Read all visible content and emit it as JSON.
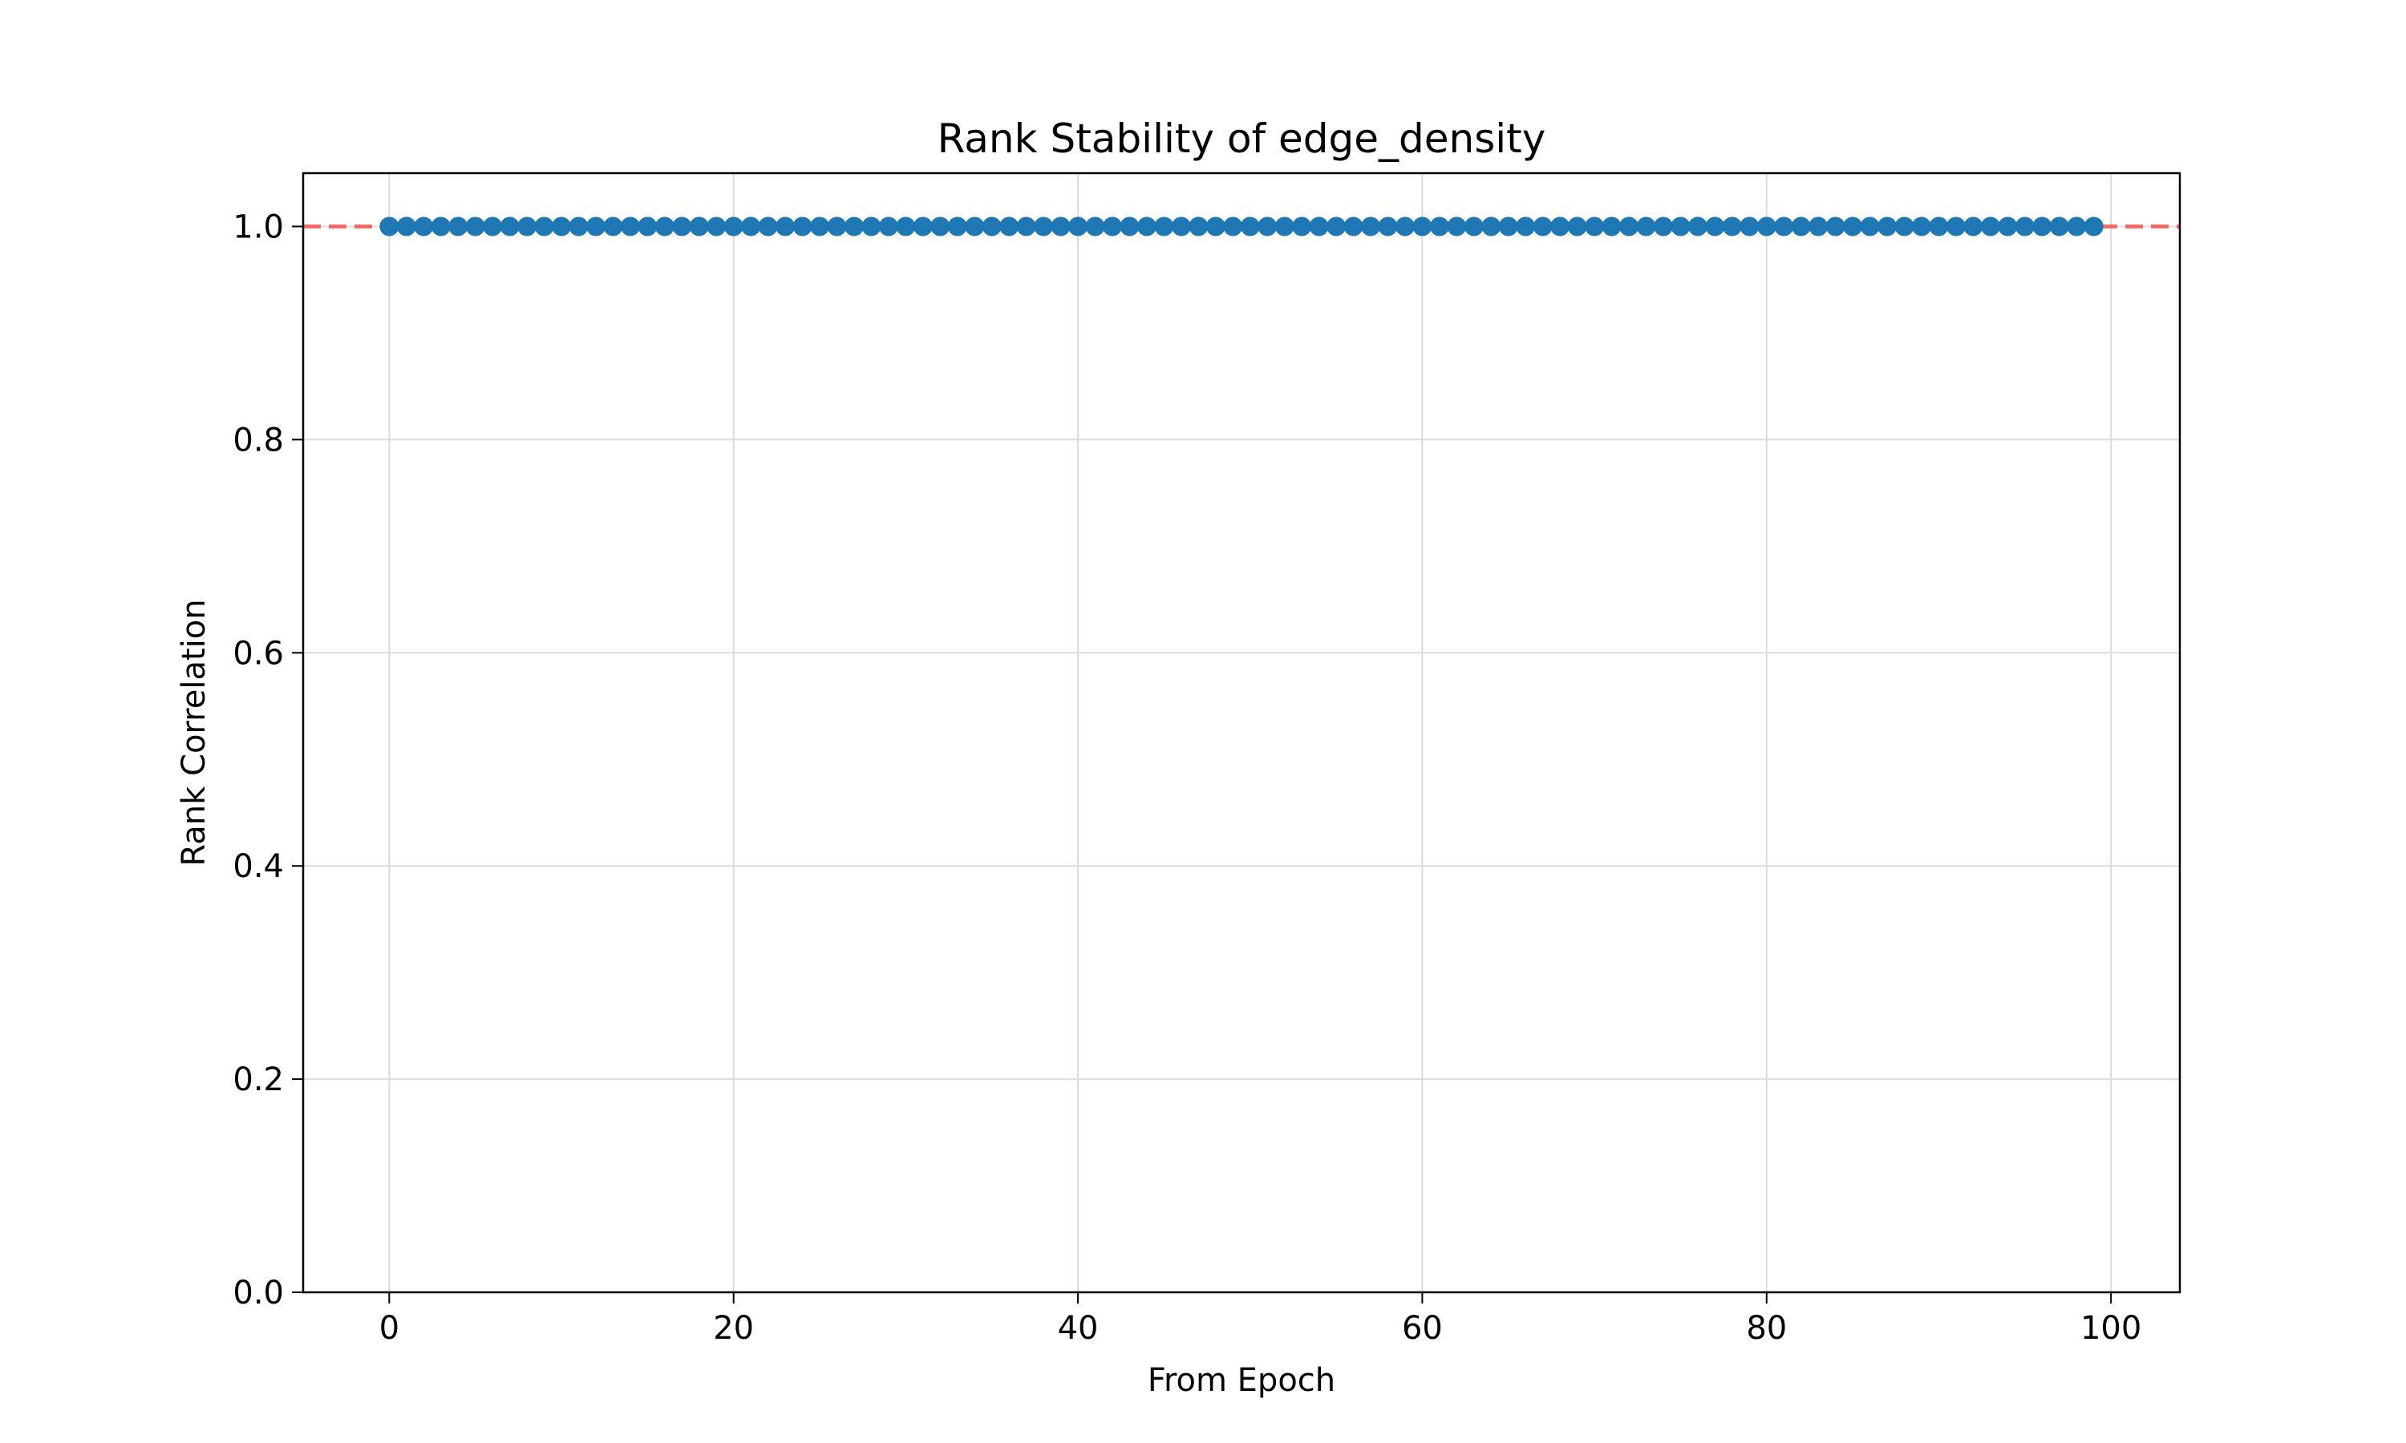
{
  "chart_data": {
    "type": "line",
    "title": "Rank Stability of edge_density",
    "xlabel": "From Epoch",
    "ylabel": "Rank Correlation",
    "xlim": [
      -5,
      104
    ],
    "ylim": [
      0,
      1.05
    ],
    "x_ticks": [
      "0",
      "20",
      "40",
      "60",
      "80",
      "100"
    ],
    "y_ticks": [
      "0.0",
      "0.2",
      "0.4",
      "0.6",
      "0.8",
      "1.0"
    ],
    "grid": true,
    "series": [
      {
        "x_start": 0,
        "x_end": 99,
        "x_step": 1,
        "y_constant": 1.0,
        "color": "#1f77b4",
        "marker": "circle"
      }
    ],
    "reference_line": {
      "y": 1.0,
      "color": "#ff0000",
      "style": "dashed"
    }
  }
}
